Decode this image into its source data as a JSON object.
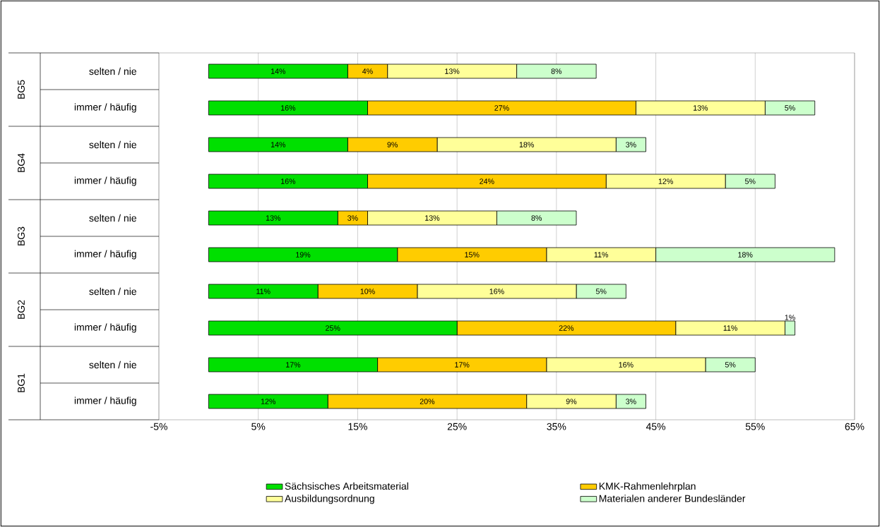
{
  "chart_data": {
    "type": "bar",
    "orientation": "horizontal",
    "stacked": true,
    "categories": [
      "selten / nie",
      "immer / häufig",
      "selten / nie",
      "immer / häufig",
      "selten / nie",
      "immer / häufig",
      "selten / nie",
      "immer / häufig",
      "selten / nie",
      "immer / häufig"
    ],
    "annotations": [
      "BG5",
      "BG4",
      "BG3",
      "BG2",
      "BG1"
    ],
    "series": [
      {
        "name": "Sächsisches Arbeitsmaterial",
        "color": "#00e000",
        "values": [
          14,
          16,
          14,
          16,
          13,
          19,
          11,
          25,
          17,
          12
        ],
        "value_labels": [
          "14%",
          "16%",
          "14%",
          "16%",
          "13%",
          "19%",
          "11%",
          "25%",
          "17%",
          "12%"
        ]
      },
      {
        "name": "KMK-Rahmenlehrplan",
        "color": "#ffcc00",
        "values": [
          4,
          27,
          9,
          24,
          3,
          15,
          10,
          22,
          17,
          20
        ],
        "value_labels": [
          "4%",
          "27%",
          "9%",
          "24%",
          "3%",
          "15%",
          "10%",
          "22%",
          "17%",
          "20%"
        ]
      },
      {
        "name": "Ausbildungsordnung",
        "color": "#ffff99",
        "values": [
          13,
          13,
          18,
          12,
          13,
          11,
          16,
          11,
          16,
          9
        ],
        "value_labels": [
          "13%",
          "13%",
          "18%",
          "12%",
          "13%",
          "11%",
          "16%",
          "11%",
          "16%",
          "9%"
        ]
      },
      {
        "name": "Materialen anderer Bundesländer",
        "color": "#ccffcc",
        "values": [
          8,
          5,
          3,
          5,
          8,
          18,
          5,
          1,
          5,
          3
        ],
        "value_labels": [
          "8%",
          "5%",
          "3%",
          "5%",
          "8%",
          "18%",
          "5%",
          "1%",
          "5%",
          "3%"
        ]
      }
    ],
    "xlim": [
      -5,
      65
    ],
    "xticks": [
      {
        "value": -5,
        "label": "-5%"
      },
      {
        "value": 5,
        "label": "5%"
      },
      {
        "value": 15,
        "label": "15%"
      },
      {
        "value": 25,
        "label": "25%"
      },
      {
        "value": 35,
        "label": "35%"
      },
      {
        "value": 45,
        "label": "45%"
      },
      {
        "value": 55,
        "label": "55%"
      },
      {
        "value": 65,
        "label": "65%"
      }
    ],
    "grid": "x",
    "legend": "bottom"
  }
}
